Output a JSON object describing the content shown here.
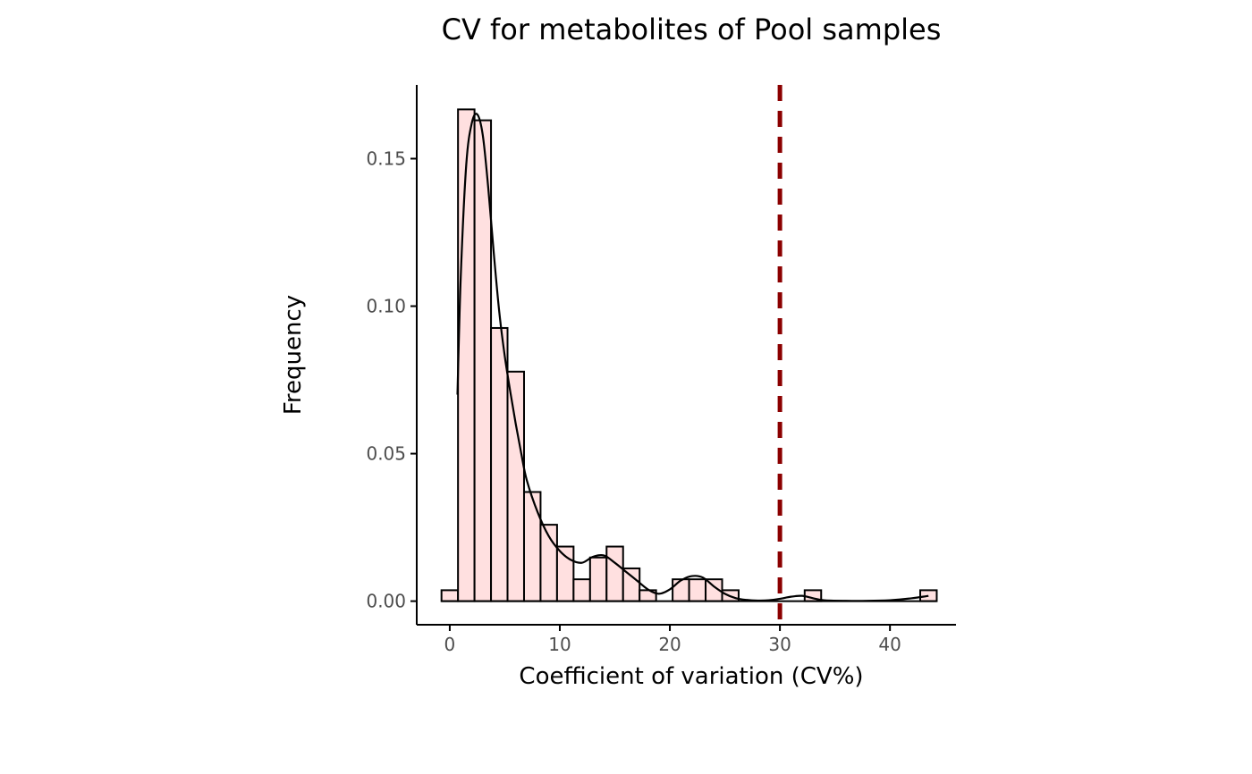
{
  "chart_data": {
    "type": "histogram",
    "title": "CV for metabolites of Pool samples",
    "xlabel": "Coefficient of variation (CV%)",
    "ylabel": "Frequency",
    "xlim": [
      -3,
      46
    ],
    "ylim": [
      -0.008,
      0.175
    ],
    "x_ticks": [
      0,
      10,
      20,
      30,
      40
    ],
    "y_ticks": [
      0.0,
      0.05,
      0.1,
      0.15
    ],
    "y_tick_labels": [
      "0.00",
      "0.05",
      "0.10",
      "0.15"
    ],
    "grid": false,
    "legend": "none",
    "bin_width": 1.5,
    "bins": [
      {
        "x0": -0.75,
        "x1": 0.75,
        "freq": 0.0037
      },
      {
        "x0": 0.75,
        "x1": 2.25,
        "freq": 0.1667
      },
      {
        "x0": 2.25,
        "x1": 3.75,
        "freq": 0.163
      },
      {
        "x0": 3.75,
        "x1": 5.25,
        "freq": 0.0926
      },
      {
        "x0": 5.25,
        "x1": 6.75,
        "freq": 0.0778
      },
      {
        "x0": 6.75,
        "x1": 8.25,
        "freq": 0.037
      },
      {
        "x0": 8.25,
        "x1": 9.75,
        "freq": 0.0259
      },
      {
        "x0": 9.75,
        "x1": 11.25,
        "freq": 0.0185
      },
      {
        "x0": 11.25,
        "x1": 12.75,
        "freq": 0.0074
      },
      {
        "x0": 12.75,
        "x1": 14.25,
        "freq": 0.0148
      },
      {
        "x0": 14.25,
        "x1": 15.75,
        "freq": 0.0185
      },
      {
        "x0": 15.75,
        "x1": 17.25,
        "freq": 0.0111
      },
      {
        "x0": 17.25,
        "x1": 18.75,
        "freq": 0.0037
      },
      {
        "x0": 18.75,
        "x1": 20.25,
        "freq": 0.0
      },
      {
        "x0": 20.25,
        "x1": 21.75,
        "freq": 0.0074
      },
      {
        "x0": 21.75,
        "x1": 23.25,
        "freq": 0.0074
      },
      {
        "x0": 23.25,
        "x1": 24.75,
        "freq": 0.0074
      },
      {
        "x0": 24.75,
        "x1": 26.25,
        "freq": 0.0037
      },
      {
        "x0": 26.25,
        "x1": 27.75,
        "freq": 0.0
      },
      {
        "x0": 27.75,
        "x1": 29.25,
        "freq": 0.0
      },
      {
        "x0": 29.25,
        "x1": 30.75,
        "freq": 0.0
      },
      {
        "x0": 30.75,
        "x1": 32.25,
        "freq": 0.0
      },
      {
        "x0": 32.25,
        "x1": 33.75,
        "freq": 0.0037
      },
      {
        "x0": 33.75,
        "x1": 35.25,
        "freq": 0.0
      },
      {
        "x0": 35.25,
        "x1": 36.75,
        "freq": 0.0
      },
      {
        "x0": 36.75,
        "x1": 38.25,
        "freq": 0.0
      },
      {
        "x0": 38.25,
        "x1": 39.75,
        "freq": 0.0
      },
      {
        "x0": 39.75,
        "x1": 41.25,
        "freq": 0.0
      },
      {
        "x0": 41.25,
        "x1": 42.75,
        "freq": 0.0
      },
      {
        "x0": 42.75,
        "x1": 44.25,
        "freq": 0.0037
      }
    ],
    "density": {
      "x": [
        0.7,
        1.0,
        1.5,
        2.0,
        2.5,
        3.0,
        3.5,
        4.0,
        4.5,
        5.0,
        5.5,
        6.0,
        6.5,
        7.0,
        8.0,
        9.0,
        10.0,
        11.0,
        12.0,
        13.0,
        14.0,
        15.0,
        16.0,
        17.0,
        18.0,
        19.0,
        20.0,
        21.0,
        22.0,
        23.0,
        24.0,
        25.0,
        26.0,
        27.0,
        28.0,
        29.0,
        30.0,
        31.0,
        32.0,
        33.0,
        34.0,
        36.0,
        38.0,
        40.0,
        41.0,
        42.0,
        43.0,
        43.5
      ],
      "y": [
        0.07,
        0.11,
        0.148,
        0.162,
        0.165,
        0.158,
        0.14,
        0.118,
        0.098,
        0.083,
        0.071,
        0.06,
        0.05,
        0.041,
        0.03,
        0.022,
        0.017,
        0.014,
        0.013,
        0.015,
        0.0155,
        0.013,
        0.01,
        0.007,
        0.004,
        0.0025,
        0.004,
        0.007,
        0.0085,
        0.008,
        0.005,
        0.0025,
        0.001,
        0.0004,
        0.0002,
        0.0003,
        0.0008,
        0.0015,
        0.0018,
        0.001,
        0.0003,
        0.0001,
        0.0001,
        0.0003,
        0.0006,
        0.001,
        0.0015,
        0.0018
      ]
    },
    "reference_line": {
      "x": 30,
      "style": "dashed"
    },
    "colors": {
      "bar_fill": "#ffe0e0",
      "bar_stroke": "#000000",
      "density_line": "#000000",
      "reference_line": "#8b0000",
      "tick_label": "#4d4d4d"
    }
  }
}
